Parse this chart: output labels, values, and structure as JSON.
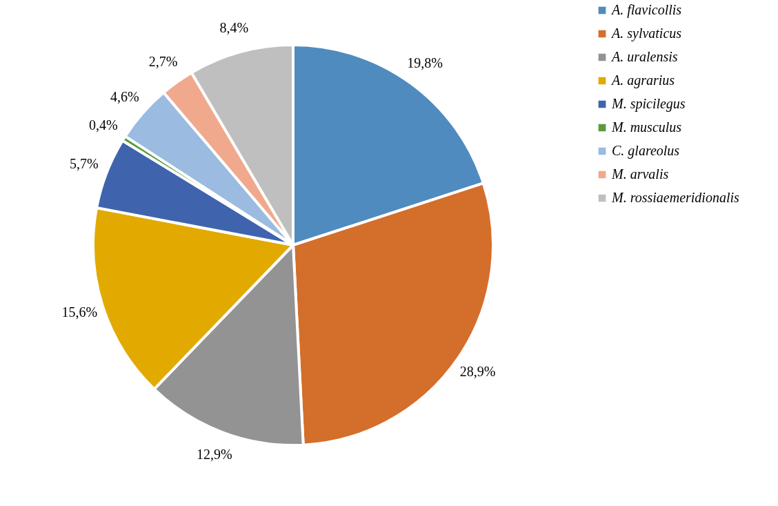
{
  "chart_data": {
    "type": "pie",
    "categories": [
      "A. flavicollis",
      "A. sylvaticus",
      "A. uralensis",
      "A. agrarius",
      "M. spicilegus",
      "M. musculus",
      "C. glareolus",
      "M. arvalis",
      "M. rossiaemeridionalis"
    ],
    "values": [
      19.8,
      28.9,
      12.9,
      15.6,
      5.7,
      0.4,
      4.6,
      2.7,
      8.4
    ],
    "value_labels": [
      "19,8%",
      "28,9%",
      "12,9%",
      "15,6%",
      "5,7%",
      "0,4%",
      "4,6%",
      "2,7%",
      "8,4%"
    ],
    "colors": [
      "#4f8bbf",
      "#d46e2b",
      "#939393",
      "#e2aa00",
      "#3f64ad",
      "#5b9a3c",
      "#9bbbe0",
      "#f0a98c",
      "#bfbfbf"
    ],
    "legend": "right"
  }
}
